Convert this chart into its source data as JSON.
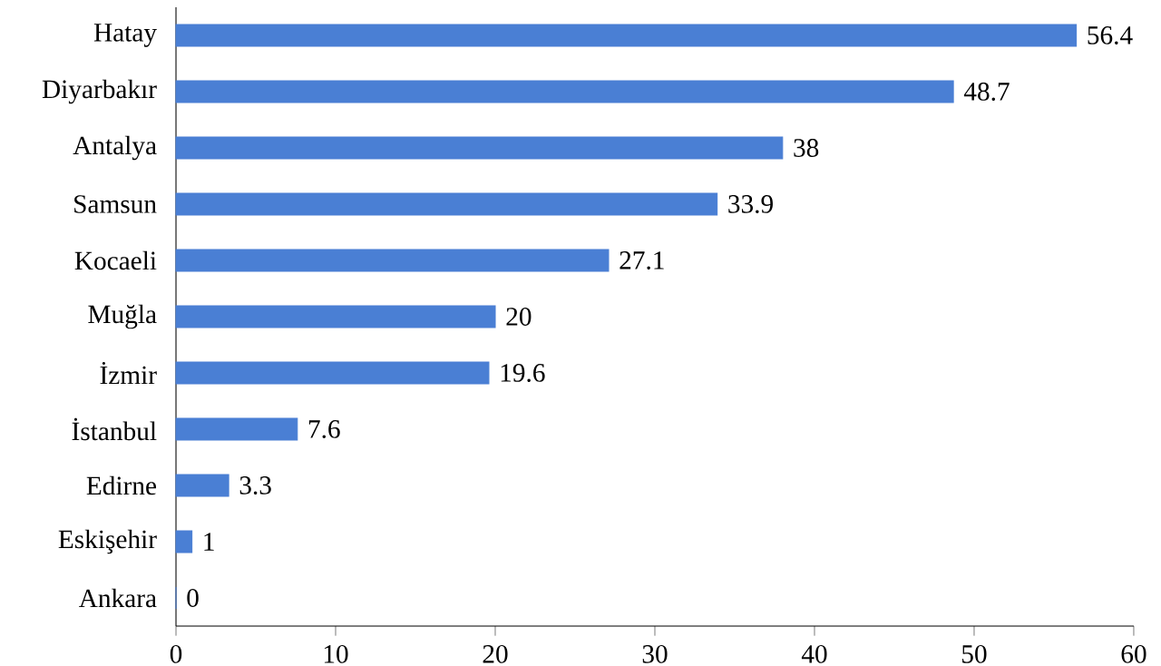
{
  "chart_data": {
    "type": "bar",
    "orientation": "horizontal",
    "categories": [
      "Hatay",
      "Diyarbakır",
      "Antalya",
      "Samsun",
      "Kocaeli",
      "Muğla",
      "İzmir",
      "İstanbul",
      "Edirne",
      "Eskişehir",
      "Ankara"
    ],
    "values": [
      56.4,
      48.7,
      38,
      33.9,
      27.1,
      20,
      19.6,
      7.6,
      3.3,
      1,
      0
    ],
    "color": "#4a7fd4",
    "xlim": [
      0,
      60
    ],
    "xticks": [
      0,
      10,
      20,
      30,
      40,
      50,
      60
    ],
    "data_labels": true
  }
}
